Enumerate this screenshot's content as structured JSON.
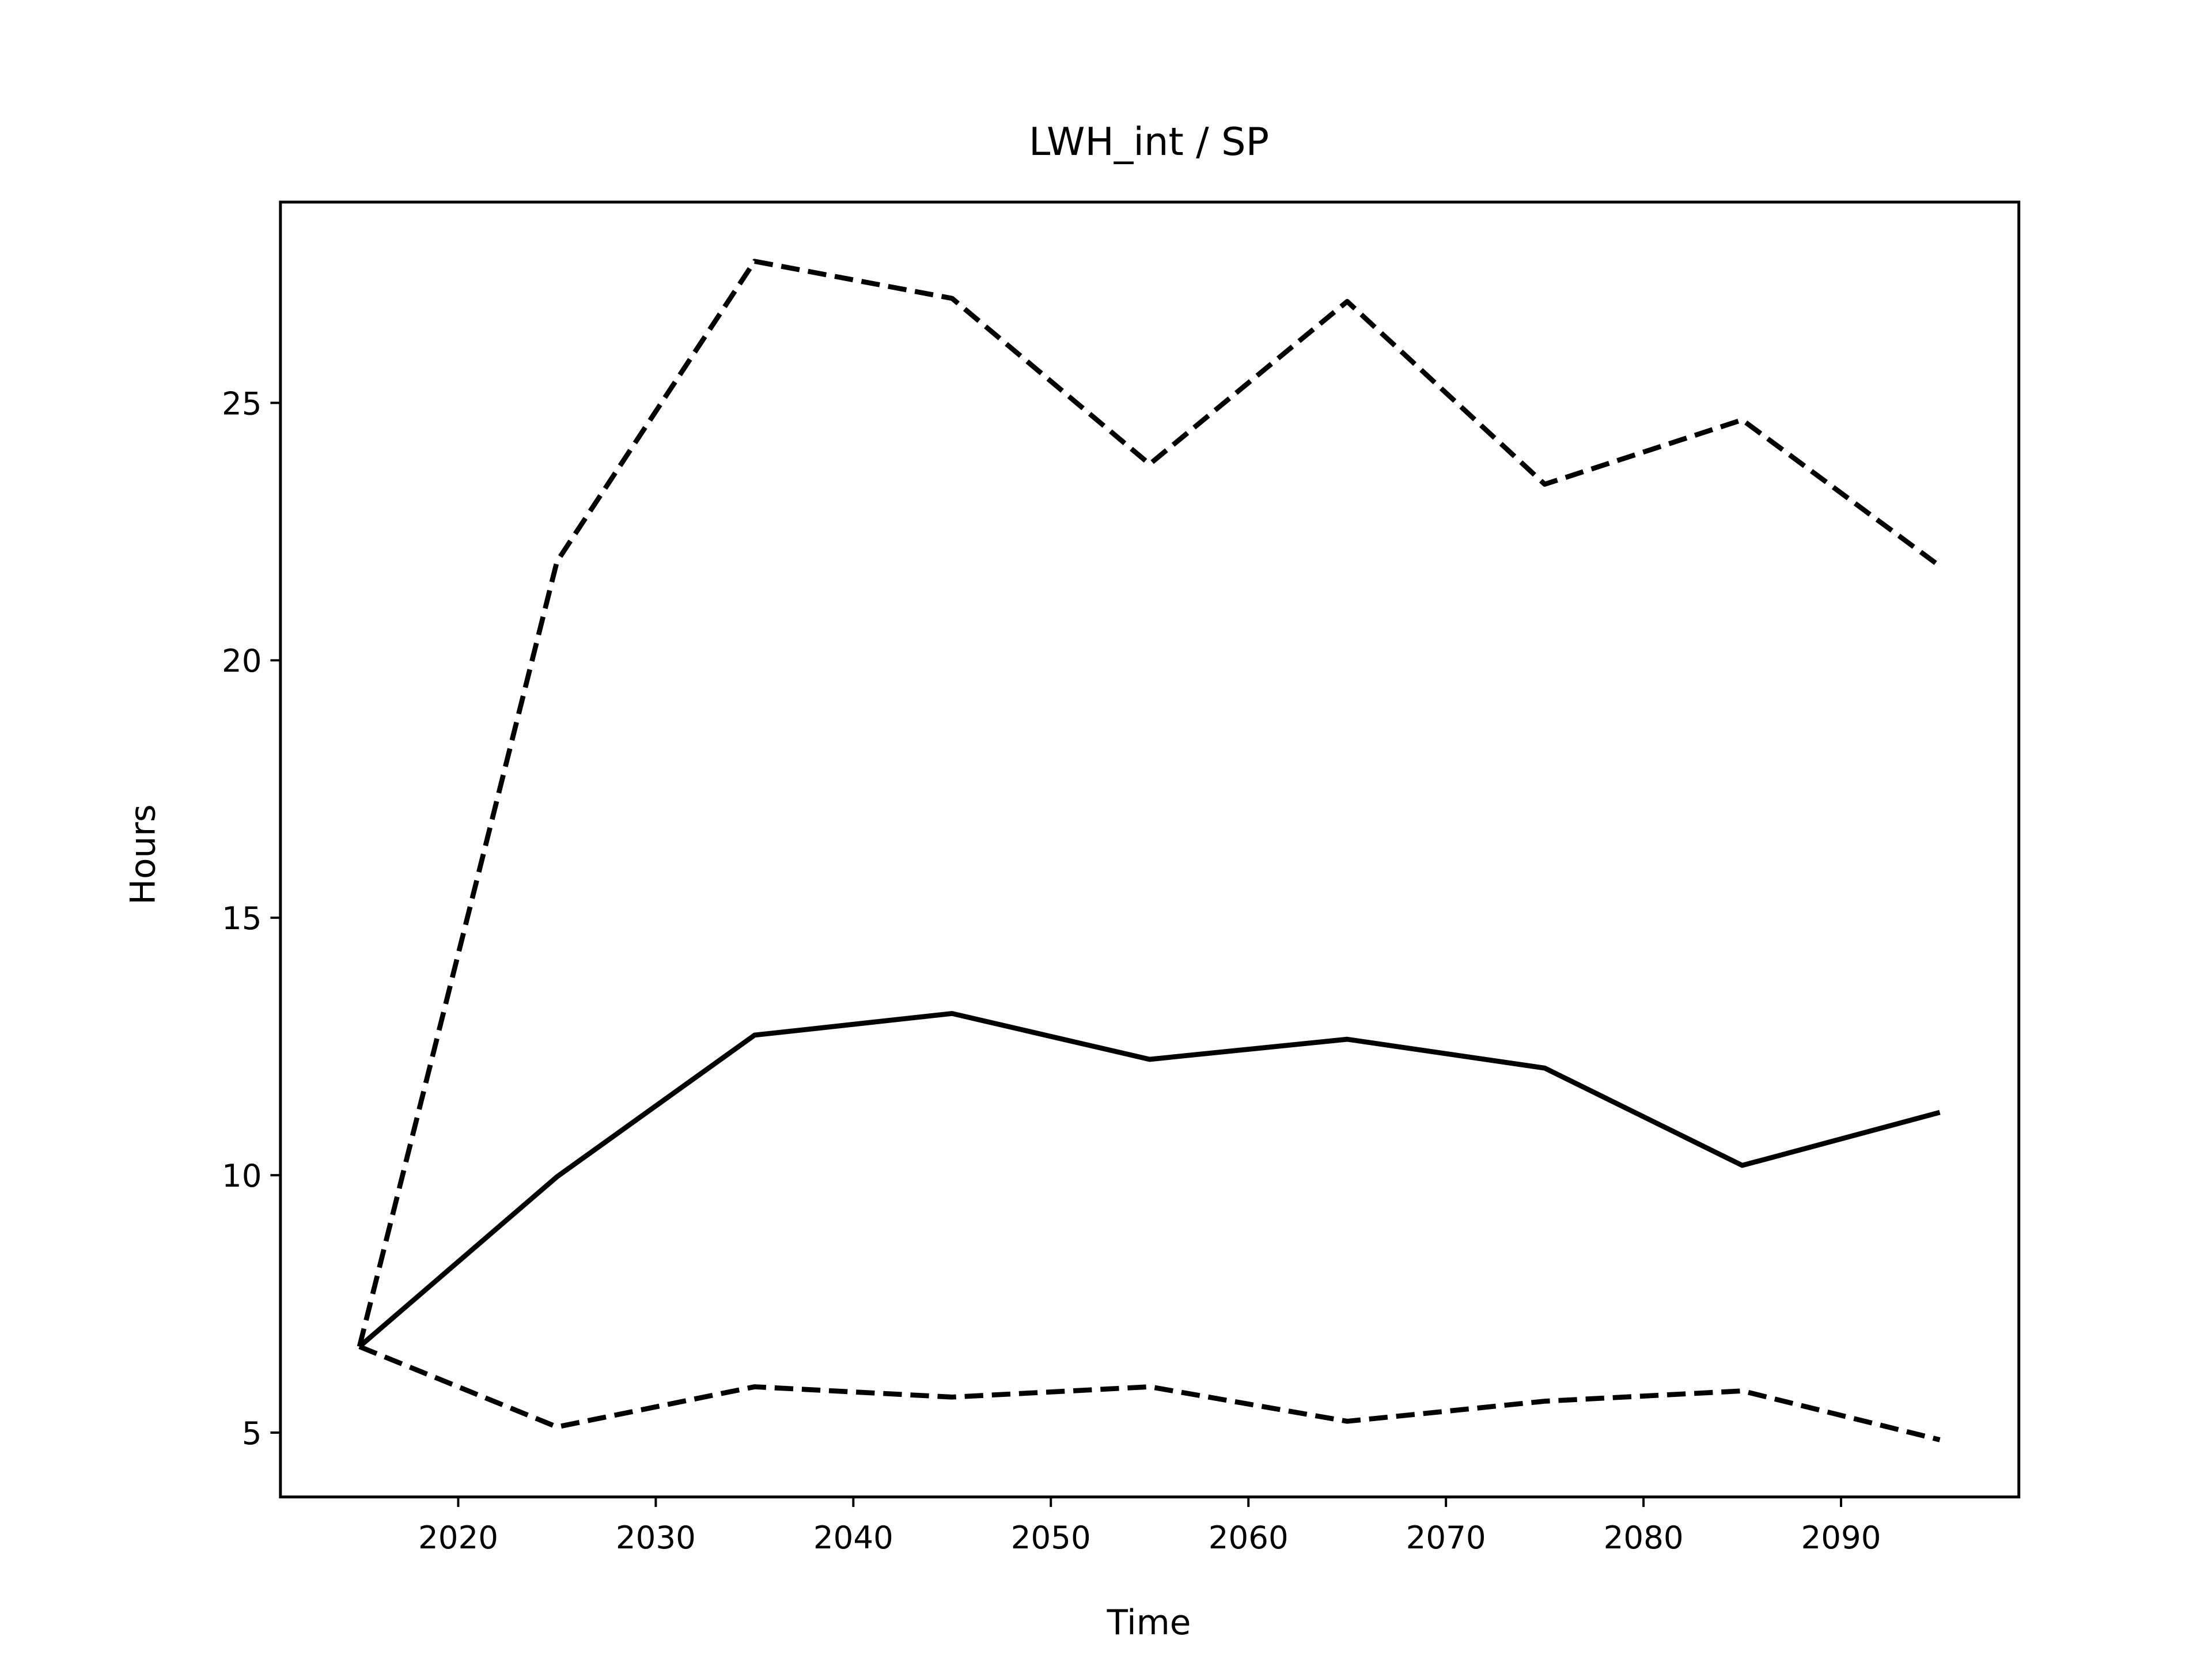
{
  "chart_data": {
    "type": "line",
    "title": "LWH_int / SP",
    "x_label": "Time",
    "y_label": "Hours",
    "x": [
      2015,
      2025,
      2035,
      2045,
      2055,
      2065,
      2075,
      2085,
      2095
    ],
    "series": [
      {
        "color": "#000000",
        "dashed": false,
        "values": [
          6.67,
          9.97,
          12.72,
          13.14,
          12.25,
          12.64,
          12.08,
          10.19,
          11.22
        ]
      },
      {
        "color": "#000000",
        "dashed": true,
        "values": [
          6.67,
          21.92,
          27.75,
          27.03,
          23.81,
          26.97,
          23.42,
          24.67,
          21.83
        ]
      },
      {
        "color": "#000000",
        "dashed": true,
        "values": [
          6.67,
          5.11,
          5.89,
          5.69,
          5.89,
          5.22,
          5.61,
          5.81,
          4.86
        ]
      }
    ],
    "xlim": [
      2011,
      2099
    ],
    "ylim": [
      3.75,
      28.9
    ],
    "xticks": [
      2020,
      2030,
      2040,
      2050,
      2060,
      2070,
      2080,
      2090
    ],
    "yticks": [
      5,
      10,
      15,
      20,
      25
    ],
    "grid": false
  }
}
